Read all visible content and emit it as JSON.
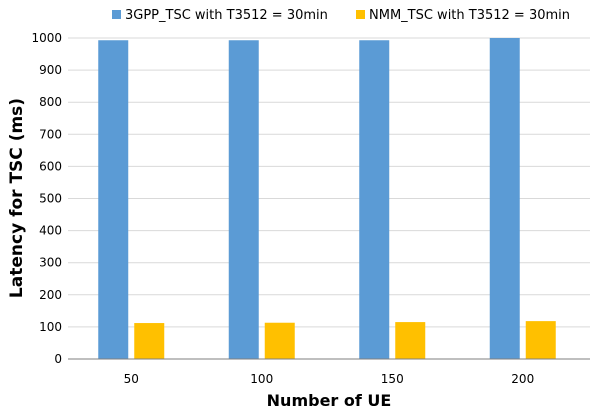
{
  "chart_data": {
    "type": "bar",
    "title": "",
    "xlabel": "Number of UE",
    "ylabel": "Latency for TSC (ms)",
    "categories": [
      "50",
      "100",
      "150",
      "200"
    ],
    "ylim": [
      0,
      1000
    ],
    "yticks": [
      0,
      100,
      200,
      300,
      400,
      500,
      600,
      700,
      800,
      900,
      1000
    ],
    "grid": true,
    "legend_position": "top",
    "series": [
      {
        "name": "3GPP_TSC with T3512 = 30min",
        "color": "#5B9BD5",
        "values": [
          993,
          993,
          993,
          1000
        ]
      },
      {
        "name": "NMM_TSC with T3512 = 30min",
        "color": "#FFC000",
        "values": [
          112,
          113,
          115,
          118
        ]
      }
    ]
  }
}
